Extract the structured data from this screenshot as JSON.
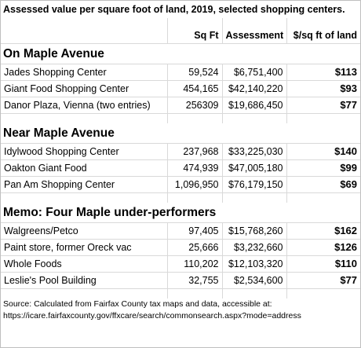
{
  "title": "Assessed value per square foot of land, 2019, selected shopping centers.",
  "headers": {
    "name": "",
    "sqft": "Sq Ft",
    "assessment": "Assessment",
    "per_sqft": "$/sq ft of land"
  },
  "sections": [
    {
      "heading": "On Maple Avenue",
      "rows": [
        {
          "name": "Jades Shopping Center",
          "sqft": "59,524",
          "assessment": "$6,751,400",
          "per_sqft": "$113"
        },
        {
          "name": "Giant Food Shopping Center",
          "sqft": "454,165",
          "assessment": "$42,140,220",
          "per_sqft": "$93"
        },
        {
          "name": "Danor Plaza, Vienna (two entries)",
          "sqft": "256309",
          "assessment": "$19,686,450",
          "per_sqft": "$77"
        }
      ]
    },
    {
      "heading": "Near Maple Avenue",
      "rows": [
        {
          "name": "Idylwood Shopping Center",
          "sqft": "237,968",
          "assessment": "$33,225,030",
          "per_sqft": "$140"
        },
        {
          "name": "Oakton Giant Food",
          "sqft": "474,939",
          "assessment": "$47,005,180",
          "per_sqft": "$99"
        },
        {
          "name": "Pan Am Shopping Center",
          "sqft": "1,096,950",
          "assessment": "$76,179,150",
          "per_sqft": "$69"
        }
      ]
    },
    {
      "heading": "Memo:  Four Maple under-performers",
      "rows": [
        {
          "name": "Walgreens/Petco",
          "sqft": "97,405",
          "assessment": "$15,768,260",
          "per_sqft": "$162"
        },
        {
          "name": "Paint store, former Oreck vac",
          "sqft": "25,666",
          "assessment": "$3,232,660",
          "per_sqft": "$126"
        },
        {
          "name": "Whole Foods",
          "sqft": "110,202",
          "assessment": "$12,103,320",
          "per_sqft": "$110"
        },
        {
          "name": "Leslie's Pool Building",
          "sqft": "32,755",
          "assessment": "$2,534,600",
          "per_sqft": "$77"
        }
      ]
    }
  ],
  "source": {
    "line1": "Source:  Calculated from Fairfax County tax maps and data, accessible at:",
    "line2": "https://icare.fairfaxcounty.gov/ffxcare/search/commonsearch.aspx?mode=address"
  }
}
